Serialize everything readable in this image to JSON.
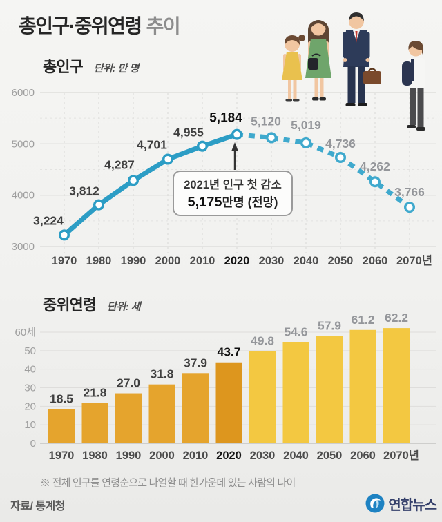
{
  "header": {
    "title_main": "총인구·중위연령",
    "title_suffix": "추이"
  },
  "population": {
    "section_label": "총인구",
    "unit_label": "단위: 만 명"
  },
  "median_age": {
    "section_label": "중위연령",
    "unit_label": "단위: 세",
    "footnote": "※ 전체 인구를 연령순으로 나열할 때 한가운데 있는 사람의 나이"
  },
  "footer": {
    "source": "자료/ 통계청",
    "logo_text": "연합뉴스",
    "logo_color": "#1e82c2"
  },
  "chart_data": [
    {
      "type": "line",
      "title": "총인구",
      "unit": "만 명",
      "categories": [
        "1970",
        "1980",
        "1990",
        "2000",
        "2010",
        "2020",
        "2030",
        "2040",
        "2050",
        "2060",
        "2070년"
      ],
      "values": [
        3224,
        3812,
        4287,
        4701,
        4955,
        5184,
        5120,
        5019,
        4736,
        4262,
        3766
      ],
      "labels": [
        "3,224",
        "3,812",
        "4,287",
        "4,701",
        "4,955",
        "5,184",
        "5,120",
        "5,019",
        "4,736",
        "4,262",
        "3,766"
      ],
      "ylim": [
        3000,
        6000
      ],
      "yticks": [
        6000,
        5000,
        4000,
        3000
      ],
      "grid": "dashed-vertical-and-horizontal",
      "legend": "none",
      "solid_until_index": 5,
      "highlight_index": 5,
      "line_color": "#2c9dc5",
      "forecast_line_color": "#3fa9cd",
      "label_color_past": "#3f3f3f",
      "label_color_highlight": "#0f0f0f",
      "label_color_future": "#94969a",
      "annotation": {
        "line1": "2021년 인구 첫 감소",
        "value_bold": "5,175",
        "value_rest": "만명 (전망)"
      }
    },
    {
      "type": "bar",
      "title": "중위연령",
      "unit": "세",
      "categories": [
        "1970",
        "1980",
        "1990",
        "2000",
        "2010",
        "2020",
        "2030",
        "2040",
        "2050",
        "2060",
        "2070년"
      ],
      "values": [
        18.5,
        21.8,
        27.0,
        31.8,
        37.9,
        43.7,
        49.8,
        54.6,
        57.9,
        61.2,
        62.2
      ],
      "labels": [
        "18.5",
        "21.8",
        "27.0",
        "31.8",
        "37.9",
        "43.7",
        "49.8",
        "54.6",
        "57.9",
        "61.2",
        "62.2"
      ],
      "ylim": [
        0,
        60
      ],
      "yticks": [
        "60세",
        "50",
        "40",
        "30",
        "20",
        "10",
        "0"
      ],
      "grid": "horizontal",
      "legend": "none",
      "highlight_index": 5,
      "bar_color_past": "#e5a42d",
      "bar_color_highlight": "#dd961e",
      "bar_color_future": "#f3c841",
      "label_color_past": "#3f3f3f",
      "label_color_highlight": "#0f0f0f",
      "label_color_future": "#94969a"
    }
  ]
}
